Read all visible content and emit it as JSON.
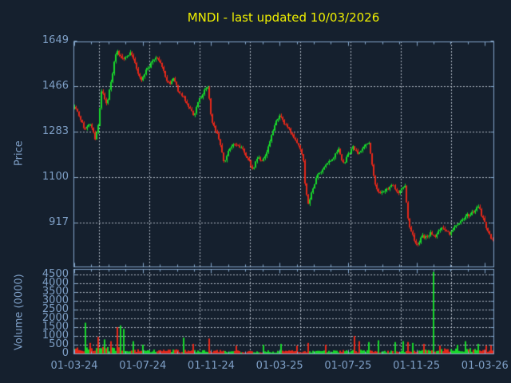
{
  "title": "MNDI - last updated 10/03/2026",
  "symbol": "MNDI",
  "last_updated": "10/03/2026",
  "colors": {
    "background": "#15202e",
    "frame": "#86a7cc",
    "grid": "#c9ced6",
    "label": "#7e9fc6",
    "title": "#f0f000",
    "up": "#19d92b",
    "down": "#e6281a"
  },
  "price_axis": {
    "label": "Price",
    "ticks": [
      1649,
      1466,
      1283,
      1100,
      917
    ]
  },
  "volume_axis": {
    "label": "Volume (0000)",
    "ticks": [
      4500,
      4000,
      3500,
      3000,
      2500,
      2000,
      1500,
      1000,
      500,
      0
    ]
  },
  "x_axis": {
    "ticks": [
      "01-03-24",
      "01-07-24",
      "01-11-24",
      "01-03-25",
      "01-07-25",
      "01-11-25",
      "01-03-26"
    ]
  },
  "chart_data": {
    "type": "candlestick+volume",
    "title": "MNDI - last updated 10/03/2026",
    "x_unit": "months since 2024-03-01",
    "x_range": [
      0,
      24.45
    ],
    "price_ylim": [
      744,
      1649
    ],
    "volume_ylim": [
      0,
      4818
    ],
    "legend": "none",
    "grid": "dotted",
    "candle_count": 262,
    "price_path": [
      [
        0,
        1390
      ],
      [
        0.19,
        1360
      ],
      [
        0.37,
        1330
      ],
      [
        0.56,
        1300
      ],
      [
        0.7,
        1285
      ],
      [
        0.89,
        1330
      ],
      [
        1.07,
        1290
      ],
      [
        1.21,
        1255
      ],
      [
        1.4,
        1300
      ],
      [
        1.59,
        1440
      ],
      [
        1.78,
        1420
      ],
      [
        1.92,
        1385
      ],
      [
        2.1,
        1470
      ],
      [
        2.29,
        1540
      ],
      [
        2.48,
        1605
      ],
      [
        2.66,
        1590
      ],
      [
        2.85,
        1570
      ],
      [
        3.04,
        1585
      ],
      [
        3.22,
        1600
      ],
      [
        3.41,
        1590
      ],
      [
        3.6,
        1550
      ],
      [
        3.79,
        1510
      ],
      [
        3.97,
        1487
      ],
      [
        4.16,
        1520
      ],
      [
        4.35,
        1540
      ],
      [
        4.53,
        1560
      ],
      [
        4.72,
        1580
      ],
      [
        4.91,
        1570
      ],
      [
        5.09,
        1555
      ],
      [
        5.28,
        1520
      ],
      [
        5.47,
        1480
      ],
      [
        5.65,
        1470
      ],
      [
        5.84,
        1500
      ],
      [
        6.03,
        1460
      ],
      [
        6.21,
        1430
      ],
      [
        6.4,
        1420
      ],
      [
        6.59,
        1395
      ],
      [
        6.78,
        1375
      ],
      [
        6.96,
        1350
      ],
      [
        7.2,
        1400
      ],
      [
        7.43,
        1430
      ],
      [
        7.62,
        1450
      ],
      [
        7.8,
        1465
      ],
      [
        7.99,
        1330
      ],
      [
        8.18,
        1300
      ],
      [
        8.41,
        1265
      ],
      [
        8.74,
        1160
      ],
      [
        9.02,
        1210
      ],
      [
        9.3,
        1230
      ],
      [
        9.58,
        1225
      ],
      [
        9.86,
        1215
      ],
      [
        10.14,
        1170
      ],
      [
        10.42,
        1130
      ],
      [
        10.7,
        1180
      ],
      [
        10.98,
        1165
      ],
      [
        11.26,
        1200
      ],
      [
        11.54,
        1270
      ],
      [
        11.82,
        1330
      ],
      [
        12.01,
        1345
      ],
      [
        12.29,
        1310
      ],
      [
        12.57,
        1290
      ],
      [
        12.85,
        1260
      ],
      [
        13.13,
        1220
      ],
      [
        13.36,
        1190
      ],
      [
        13.5,
        1070
      ],
      [
        13.69,
        990
      ],
      [
        13.88,
        1040
      ],
      [
        14.11,
        1090
      ],
      [
        14.35,
        1120
      ],
      [
        14.63,
        1140
      ],
      [
        14.91,
        1160
      ],
      [
        15.19,
        1180
      ],
      [
        15.47,
        1210
      ],
      [
        15.75,
        1150
      ],
      [
        16.03,
        1190
      ],
      [
        16.31,
        1220
      ],
      [
        16.59,
        1190
      ],
      [
        16.82,
        1210
      ],
      [
        17.06,
        1235
      ],
      [
        17.24,
        1245
      ],
      [
        17.43,
        1150
      ],
      [
        17.62,
        1060
      ],
      [
        17.85,
        1030
      ],
      [
        18.08,
        1040
      ],
      [
        18.36,
        1055
      ],
      [
        18.64,
        1065
      ],
      [
        18.88,
        1040
      ],
      [
        19.11,
        1050
      ],
      [
        19.3,
        1065
      ],
      [
        19.44,
        965
      ],
      [
        19.58,
        890
      ],
      [
        19.77,
        860
      ],
      [
        19.95,
        830
      ],
      [
        20.09,
        820
      ],
      [
        20.28,
        870
      ],
      [
        20.51,
        855
      ],
      [
        20.79,
        875
      ],
      [
        21.03,
        860
      ],
      [
        21.26,
        885
      ],
      [
        21.5,
        900
      ],
      [
        21.73,
        880
      ],
      [
        21.96,
        870
      ],
      [
        22.2,
        895
      ],
      [
        22.43,
        915
      ],
      [
        22.66,
        925
      ],
      [
        22.9,
        945
      ],
      [
        23.13,
        950
      ],
      [
        23.36,
        960
      ],
      [
        23.6,
        985
      ],
      [
        23.79,
        950
      ],
      [
        23.97,
        920
      ],
      [
        24.16,
        880
      ],
      [
        24.35,
        850
      ],
      [
        24.45,
        855
      ]
    ],
    "volume_base": [
      [
        0,
        350
      ],
      [
        1,
        320
      ],
      [
        2,
        380
      ],
      [
        3,
        300
      ],
      [
        4,
        220
      ],
      [
        5,
        180
      ],
      [
        6,
        200
      ],
      [
        7,
        170
      ],
      [
        8,
        180
      ],
      [
        9,
        150
      ],
      [
        10,
        140
      ],
      [
        11,
        150
      ],
      [
        12,
        160
      ],
      [
        13,
        150
      ],
      [
        14,
        140
      ],
      [
        15,
        150
      ],
      [
        16,
        170
      ],
      [
        17,
        180
      ],
      [
        18,
        190
      ],
      [
        19,
        200
      ],
      [
        20,
        230
      ],
      [
        21,
        250
      ],
      [
        22,
        240
      ],
      [
        23,
        260
      ],
      [
        24.45,
        280
      ]
    ],
    "volume_spikes": [
      [
        0.61,
        1750,
        "g"
      ],
      [
        0.98,
        600,
        "r"
      ],
      [
        1.36,
        950,
        "r"
      ],
      [
        1.78,
        800,
        "g"
      ],
      [
        2.15,
        700,
        "r"
      ],
      [
        2.52,
        1500,
        "r"
      ],
      [
        2.76,
        1600,
        "g"
      ],
      [
        2.94,
        1400,
        "g"
      ],
      [
        3.46,
        700,
        "g"
      ],
      [
        4.07,
        500,
        "g"
      ],
      [
        6.4,
        900,
        "g"
      ],
      [
        6.96,
        550,
        "r"
      ],
      [
        7.9,
        850,
        "r"
      ],
      [
        9.49,
        450,
        "r"
      ],
      [
        11.07,
        500,
        "g"
      ],
      [
        12.1,
        550,
        "g"
      ],
      [
        12.99,
        450,
        "r"
      ],
      [
        13.69,
        600,
        "r"
      ],
      [
        14.67,
        500,
        "r"
      ],
      [
        16.36,
        1000,
        "r"
      ],
      [
        16.64,
        700,
        "r"
      ],
      [
        17.24,
        650,
        "g"
      ],
      [
        17.76,
        750,
        "g"
      ],
      [
        18.69,
        650,
        "g"
      ],
      [
        19.16,
        700,
        "g"
      ],
      [
        19.49,
        650,
        "r"
      ],
      [
        19.81,
        600,
        "g"
      ],
      [
        20.42,
        550,
        "r"
      ],
      [
        21.03,
        4650,
        "g"
      ],
      [
        21.4,
        450,
        "r"
      ],
      [
        22.38,
        500,
        "g"
      ],
      [
        22.9,
        700,
        "g"
      ],
      [
        23.6,
        550,
        "g"
      ],
      [
        24.07,
        450,
        "r"
      ],
      [
        24.35,
        500,
        "r"
      ]
    ]
  }
}
